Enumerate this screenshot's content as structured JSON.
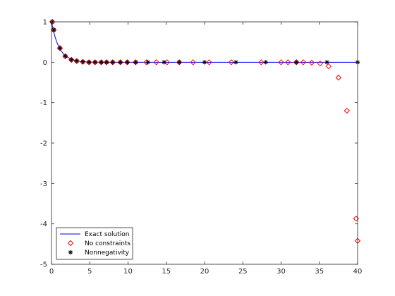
{
  "chart_data": {
    "type": "line",
    "xlim": [
      0,
      40
    ],
    "ylim": [
      -5,
      1
    ],
    "x_ticks": [
      "0",
      "5",
      "10",
      "15",
      "20",
      "25",
      "30",
      "35",
      "40"
    ],
    "y_ticks": [
      "1",
      "0",
      "-1",
      "-2",
      "-3",
      "-4",
      "-5"
    ],
    "grid": false,
    "legend_position": "bottom-left",
    "legend": [
      "Exact solution",
      "No constraints",
      "Nonnegativity"
    ],
    "series": [
      {
        "name": "Exact solution",
        "style": "line",
        "color": "#0000ff",
        "formula": "y = exp(-x)",
        "x": [
          0,
          0.25,
          0.5,
          0.75,
          1,
          1.25,
          1.5,
          1.75,
          2,
          2.5,
          3,
          3.5,
          4,
          4.5,
          5,
          6,
          7,
          8,
          10,
          15,
          20,
          30,
          40
        ],
        "y": [
          1,
          0.7788,
          0.6065,
          0.4724,
          0.3679,
          0.2865,
          0.2231,
          0.1738,
          0.1353,
          0.0821,
          0.0498,
          0.0302,
          0.0183,
          0.0111,
          0.0067,
          0.0025,
          0.0009,
          0.0003,
          0,
          0,
          0,
          0,
          0
        ]
      },
      {
        "name": "No constraints",
        "style": "marker-diamond",
        "color": "#ff0000",
        "x": [
          0.1,
          0.3,
          1.1,
          1.8,
          2.6,
          3.3,
          4.1,
          4.9,
          5.7,
          6.5,
          7.2,
          8.0,
          9.0,
          9.9,
          11.0,
          12.4,
          13.7,
          15.1,
          16.7,
          18.5,
          20.6,
          23.5,
          27.4,
          30.0,
          30.9,
          32.0,
          32.9,
          34.0,
          35.1,
          36.2,
          37.5,
          38.6,
          39.8,
          40.0
        ],
        "y": [
          1.0,
          0.8,
          0.35,
          0.15,
          0.06,
          0.03,
          0.01,
          0,
          0,
          0,
          0,
          0,
          0,
          0,
          0,
          0,
          0,
          0,
          0,
          0,
          0,
          0,
          0,
          0,
          0,
          0,
          0,
          -0.01,
          -0.03,
          -0.1,
          -0.38,
          -1.2,
          -3.87,
          -4.42
        ]
      },
      {
        "name": "Nonnegativity",
        "style": "marker-star",
        "color": "#000000",
        "x": [
          0.1,
          0.3,
          1.1,
          1.8,
          2.6,
          3.3,
          4.1,
          4.9,
          5.7,
          6.5,
          7.2,
          8.0,
          9.0,
          9.9,
          11.0,
          12.6,
          14.7,
          16.7,
          20.0,
          24.1,
          28.0,
          32.0,
          36.0,
          40.0
        ],
        "y": [
          1.0,
          0.8,
          0.35,
          0.15,
          0.06,
          0.03,
          0.01,
          0,
          0,
          0,
          0,
          0,
          0,
          0,
          0,
          0,
          0,
          0,
          0,
          0,
          0,
          0,
          0,
          0
        ]
      }
    ]
  }
}
